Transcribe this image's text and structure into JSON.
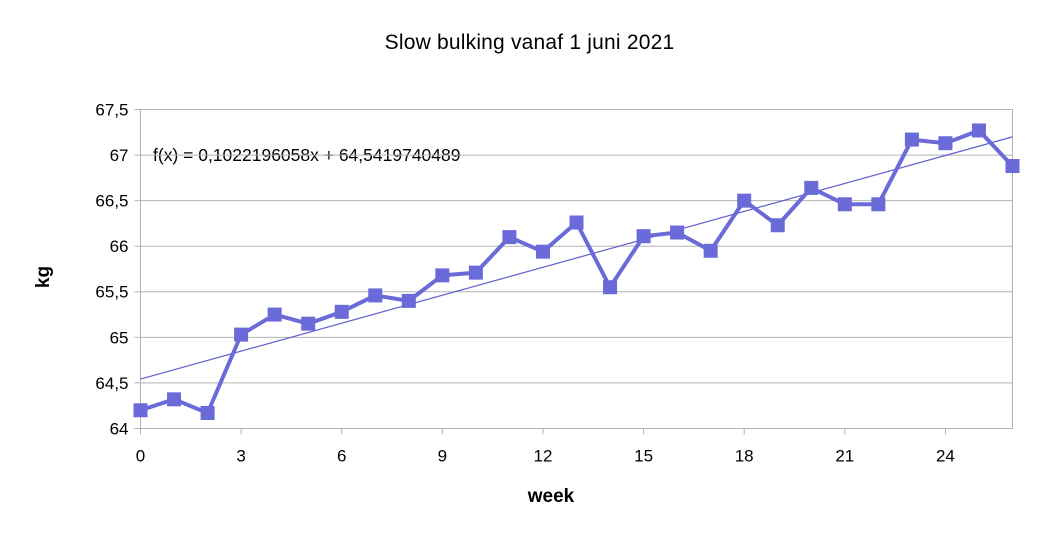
{
  "chart_data": {
    "type": "line",
    "title": "Slow bulking vanaf 1 juni 2021",
    "xlabel": "week",
    "ylabel": "kg",
    "x": [
      0,
      1,
      2,
      3,
      4,
      5,
      6,
      7,
      8,
      9,
      10,
      11,
      12,
      13,
      14,
      15,
      16,
      17,
      18,
      19,
      20,
      21,
      22,
      23,
      24,
      25,
      26
    ],
    "values": [
      64.2,
      64.32,
      64.17,
      65.03,
      65.25,
      65.15,
      65.28,
      65.46,
      65.4,
      65.68,
      65.71,
      66.1,
      65.94,
      66.26,
      65.55,
      66.11,
      66.15,
      65.95,
      66.5,
      66.23,
      66.64,
      66.46,
      66.46,
      67.17,
      67.13,
      67.27,
      66.88
    ],
    "trendline": {
      "label": "f(x) = 0,1022196058x + 64,5419740489",
      "slope": 0.1022196058,
      "intercept": 64.5419740489
    },
    "xlim": [
      0,
      26
    ],
    "ylim": [
      64,
      67.5
    ],
    "x_ticks": [
      0,
      3,
      6,
      9,
      12,
      15,
      18,
      21,
      24
    ],
    "x_tick_labels": [
      "0",
      "3",
      "6",
      "9",
      "12",
      "15",
      "18",
      "21",
      "24"
    ],
    "y_ticks": [
      64,
      64.5,
      65,
      65.5,
      66,
      66.5,
      67,
      67.5
    ],
    "y_tick_labels": [
      "64",
      "64,5",
      "65",
      "65,5",
      "66",
      "66,5",
      "67",
      "67,5"
    ],
    "grid": "horizontal",
    "legend": "none",
    "colors": {
      "series": "#6a6ad9",
      "trend": "#5e5ecf",
      "grid": "#b3b3b3",
      "text": "#000000"
    }
  }
}
